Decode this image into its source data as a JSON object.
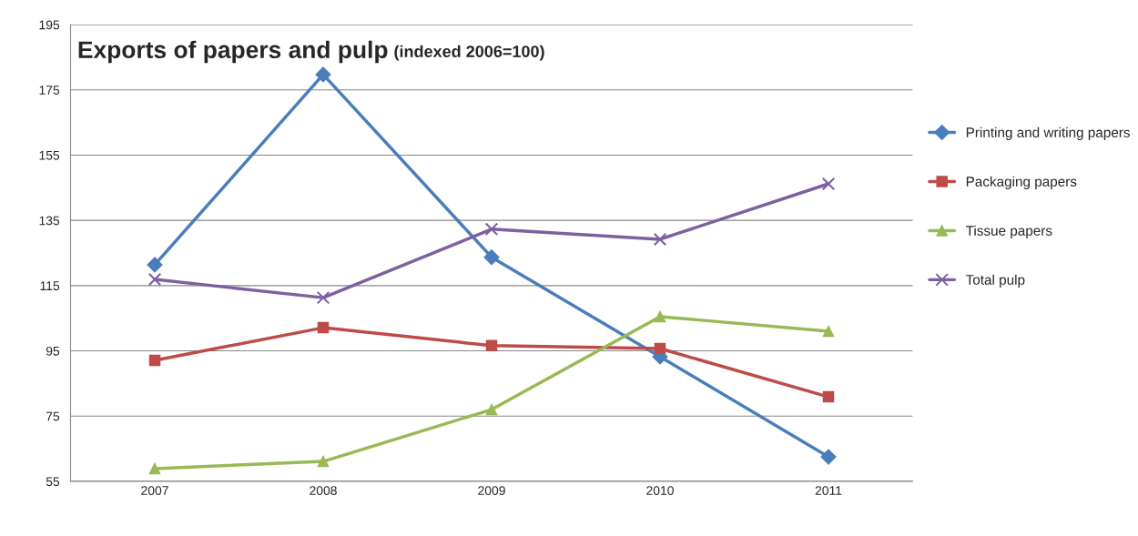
{
  "chart_data": {
    "type": "line",
    "title": "Exports of papers and pulp",
    "subtitle": "(indexed 2006=100)",
    "categories": [
      "2007",
      "2008",
      "2009",
      "2010",
      "2011"
    ],
    "series": [
      {
        "name": "Printing and writing papers",
        "color": "#4a7ebb",
        "marker": "diamond",
        "values": [
          121.4,
          179.7,
          123.7,
          93.2,
          62.5
        ]
      },
      {
        "name": "Packaging papers",
        "color": "#be4b48",
        "marker": "square",
        "values": [
          92.1,
          102.1,
          96.6,
          95.7,
          80.9
        ]
      },
      {
        "name": "Tissue papers",
        "color": "#98b954",
        "marker": "triangle",
        "values": [
          58.9,
          61.1,
          77.0,
          105.5,
          101.0
        ]
      },
      {
        "name": "Total pulp",
        "color": "#7d60a0",
        "marker": "cross",
        "values": [
          116.9,
          111.3,
          132.3,
          129.2,
          146.2
        ]
      }
    ],
    "ylim": [
      55,
      195
    ],
    "yticks": [
      55,
      75,
      95,
      115,
      135,
      155,
      175,
      195
    ],
    "grid": "y",
    "legend": "right",
    "line_style": "solid"
  }
}
